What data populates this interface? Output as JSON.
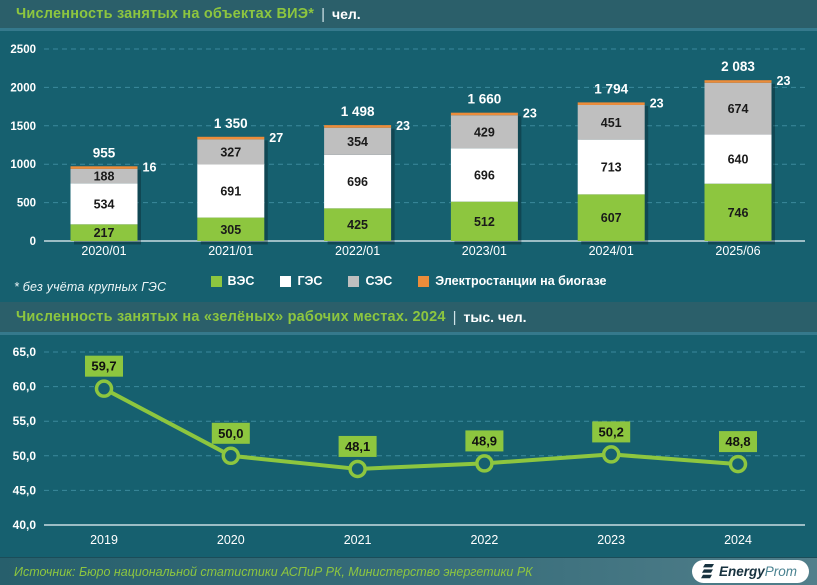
{
  "header1": {
    "title": "Численность занятых на объектах ВИЭ*",
    "separator": "|",
    "unit": "чел."
  },
  "header2": {
    "title": "Численность занятых на «зелёных» рабочих местах. 2024",
    "separator": "|",
    "unit": "тыс. чел."
  },
  "footnote": "* без учёта крупных ГЭС",
  "legend": {
    "items": [
      {
        "label": "ВЭС",
        "color": "#8DC63F"
      },
      {
        "label": "ГЭС",
        "color": "#FFFFFF"
      },
      {
        "label": "СЭС",
        "color": "#BFBFBF"
      },
      {
        "label": "Электростанции на биогазе",
        "color": "#EC8C3A"
      }
    ]
  },
  "footer": {
    "source": "Источник: Бюро национальной статистики АСПиР РК, Министерство энергетики РК",
    "logo_bold": "Energy",
    "logo_light": "Prom"
  },
  "colors": {
    "background": "#16606F",
    "grid": "#4FA0B5",
    "axis": "#C9DCE2",
    "accent_green": "#8DC63F",
    "label_dark": "#1a1a1a"
  },
  "chart_data": [
    {
      "type": "bar",
      "stacked": true,
      "title": "Численность занятых на объектах ВИЭ* | чел.",
      "categories": [
        "2020/01",
        "2021/01",
        "2022/01",
        "2023/01",
        "2024/01",
        "2025/06"
      ],
      "series": [
        {
          "name": "ВЭС",
          "color": "#8DC63F",
          "values": [
            217,
            305,
            425,
            512,
            607,
            746
          ]
        },
        {
          "name": "ГЭС",
          "color": "#FFFFFF",
          "values": [
            534,
            691,
            696,
            696,
            713,
            640
          ]
        },
        {
          "name": "СЭС",
          "color": "#BFBFBF",
          "values": [
            188,
            327,
            354,
            429,
            451,
            674
          ]
        },
        {
          "name": "Электростанции на биогазе",
          "color": "#EC8C3A",
          "values": [
            16,
            27,
            23,
            23,
            23,
            23
          ]
        }
      ],
      "totals": [
        "955",
        "1 350",
        "1 498",
        "1 660",
        "1 794",
        "2 083"
      ],
      "biogas_labels": [
        "16",
        "27",
        "23",
        "23",
        "23",
        "23"
      ],
      "ylim": [
        0,
        2500
      ],
      "yticks": [
        0,
        500,
        1000,
        1500,
        2000,
        2500
      ],
      "grid": "dashed horizontal",
      "legend_position": "bottom"
    },
    {
      "type": "line",
      "title": "Численность занятых на «зелёных» рабочих местах. 2024 | тыс. чел.",
      "categories": [
        "2019",
        "2020",
        "2021",
        "2022",
        "2023",
        "2024"
      ],
      "values": [
        59.7,
        50.0,
        48.1,
        48.9,
        50.2,
        48.8
      ],
      "point_labels": [
        "59,7",
        "50,0",
        "48,1",
        "48,9",
        "50,2",
        "48,8"
      ],
      "line_color": "#8DC63F",
      "ylim": [
        40,
        65
      ],
      "ytick_labels": [
        "40,0",
        "45,0",
        "50,0",
        "55,0",
        "60,0",
        "65,0"
      ],
      "grid": "dashed horizontal",
      "legend_position": "none"
    }
  ]
}
